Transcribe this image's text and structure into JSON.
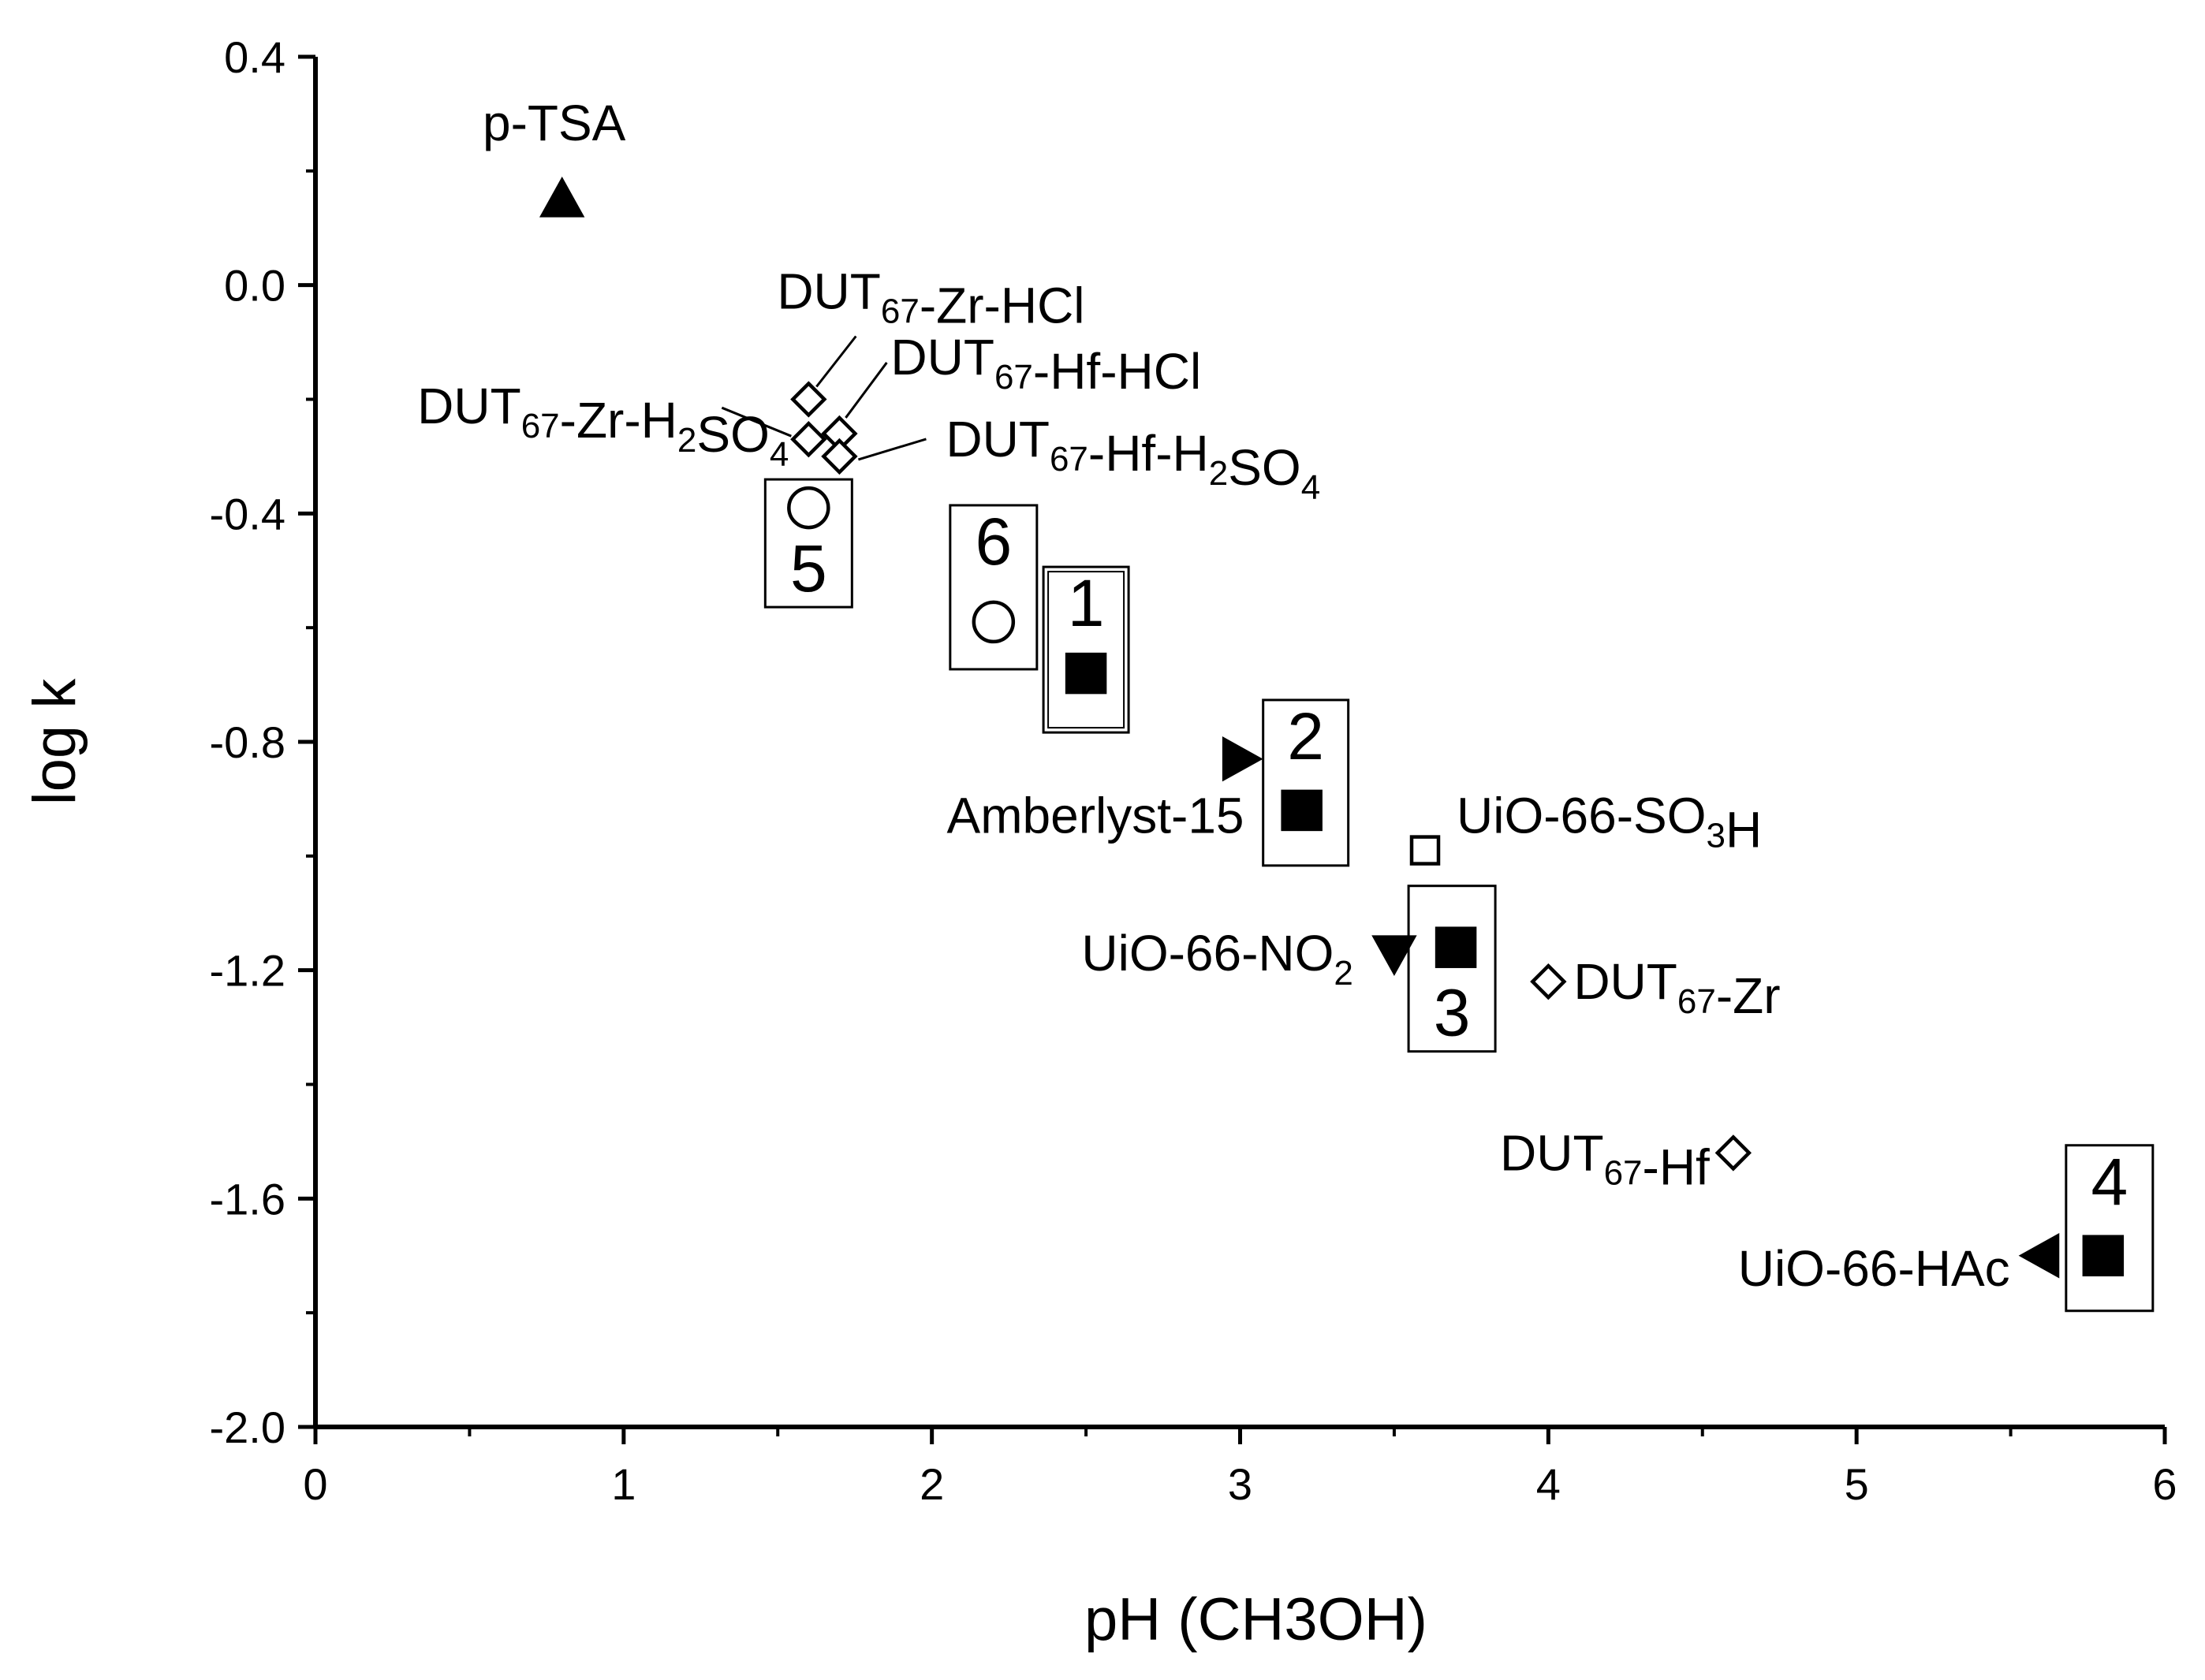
{
  "chart_data": {
    "type": "scatter",
    "title": "",
    "xlabel": "pH (CH3OH)",
    "ylabel": "log k",
    "xlim": [
      0,
      6
    ],
    "ylim": [
      -2.0,
      0.4
    ],
    "xticks": [
      0,
      1,
      2,
      3,
      4,
      5,
      6
    ],
    "xtick_labels": [
      "0",
      "1",
      "2",
      "3",
      "4",
      "5",
      "6"
    ],
    "yticks": [
      0.4,
      0.0,
      -0.4,
      -0.8,
      -1.2,
      -1.6,
      -2.0
    ],
    "ytick_labels": [
      "0.4",
      "0.0",
      "-0.4",
      "-0.8",
      "-1.2",
      "-1.6",
      "-2.0"
    ],
    "grid": false,
    "legend": "none",
    "points": [
      {
        "name": "p-TSA",
        "x": 0.8,
        "y": 0.15,
        "marker": "triangle-up",
        "filled": true
      },
      {
        "name": "DUT67-Zr-HCl",
        "x": 1.6,
        "y": -0.2,
        "marker": "diamond",
        "filled": false
      },
      {
        "name": "DUT67-Zr-H2SO4",
        "x": 1.6,
        "y": -0.27,
        "marker": "diamond",
        "filled": false
      },
      {
        "name": "DUT67-Hf-HCl",
        "x": 1.7,
        "y": -0.26,
        "marker": "diamond",
        "filled": false
      },
      {
        "name": "DUT67-Hf-H2SO4",
        "x": 1.7,
        "y": -0.3,
        "marker": "diamond",
        "filled": false
      },
      {
        "name": "5",
        "x": 1.6,
        "y": -0.39,
        "marker": "circle",
        "filled": false
      },
      {
        "name": "6",
        "x": 2.2,
        "y": -0.59,
        "marker": "circle",
        "filled": false
      },
      {
        "name": "1",
        "x": 2.5,
        "y": -0.68,
        "marker": "square",
        "filled": true
      },
      {
        "name": "Amberlyst-15",
        "x": 3.0,
        "y": -0.83,
        "marker": "triangle-right",
        "filled": true
      },
      {
        "name": "2",
        "x": 3.2,
        "y": -0.92,
        "marker": "square",
        "filled": true
      },
      {
        "name": "UiO-66-SO3H",
        "x": 3.6,
        "y": -0.99,
        "marker": "square",
        "filled": false
      },
      {
        "name": "UiO-66-NO2",
        "x": 3.5,
        "y": -1.17,
        "marker": "triangle-down",
        "filled": true
      },
      {
        "name": "3",
        "x": 3.7,
        "y": -1.16,
        "marker": "square",
        "filled": true
      },
      {
        "name": "DUT67-Zr",
        "x": 4.0,
        "y": -1.22,
        "marker": "diamond",
        "filled": false
      },
      {
        "name": "DUT67-Hf",
        "x": 4.6,
        "y": -1.52,
        "marker": "diamond",
        "filled": false
      },
      {
        "name": "UiO-66-HAc",
        "x": 5.6,
        "y": -1.7,
        "marker": "triangle-left",
        "filled": true
      },
      {
        "name": "4",
        "x": 5.8,
        "y": -1.7,
        "marker": "square",
        "filled": true
      }
    ]
  }
}
